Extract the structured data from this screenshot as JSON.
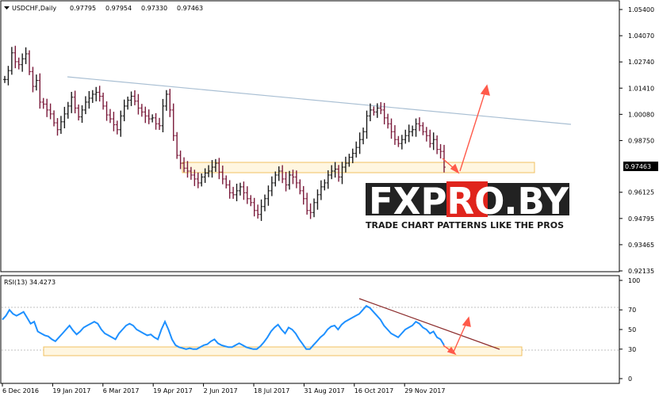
{
  "header": {
    "symbol_label": "USDCHF,Daily",
    "ohlc": [
      "0.97795",
      "0.97954",
      "0.97330",
      "0.97463"
    ]
  },
  "rsi_header": "RSI(13) 34.4273",
  "watermark": {
    "brand": "FXPRO.BY",
    "tagline": "TRADE CHART PATTERNS LIKE THE PROS"
  },
  "colors": {
    "up_bar": "#1a1a1a",
    "down_bar": "#7a1a3a",
    "rsi_line": "#1e90ff",
    "trendline": "#a9bfd3",
    "rsi_trendline": "#8b2b2b",
    "arrow": "#ff5a4a",
    "zone_border": "#f0c060",
    "zone_fill": "#fff6e0",
    "current_price_box": "#000000"
  },
  "chart_data": [
    {
      "type": "candlestick",
      "title": "USDCHF,Daily",
      "y_ticks": [
        "1.05400",
        "1.04070",
        "1.02740",
        "1.01410",
        "1.00080",
        "0.98750",
        "0.97463",
        "0.96125",
        "0.94795",
        "0.93465",
        "0.92135"
      ],
      "ylim": [
        0.92135,
        1.054
      ],
      "current_price": "0.97463",
      "x_ticks": [
        "6 Dec 2016",
        "19 Jan 2017",
        "6 Mar 2017",
        "19 Apr 2017",
        "2 Jun 2017",
        "18 Jul 2017",
        "31 Aug 2017",
        "16 Oct 2017",
        "29 Nov 2017"
      ],
      "series": [
        {
          "values": [
            1.0185,
            1.023,
            1.032,
            1.0275,
            1.026,
            1.029,
            1.0315,
            1.0225,
            1.015,
            1.018,
            1.007,
            1.006,
            1.003,
            1.001,
            0.9965,
            0.993,
            0.997,
            1.001,
            1.005,
            1.0095,
            1.004,
            0.9995,
            1.003,
            1.007,
            1.009,
            1.011,
            1.012,
            1.01,
            1.005,
            1.0005,
            0.9985,
            0.9955,
            0.993,
            1.0,
            1.005,
            1.008,
            1.01,
            1.0075,
            1.004,
            1.002,
            1.0,
            0.9985,
            0.999,
            0.996,
            0.995,
            1.005,
            1.011,
            1.003,
            0.99,
            0.98,
            0.976,
            0.9735,
            0.972,
            0.97,
            0.968,
            0.966,
            0.969,
            0.971,
            0.972,
            0.974,
            0.976,
            0.9715,
            0.968,
            0.965,
            0.961,
            0.96,
            0.962,
            0.964,
            0.961,
            0.958,
            0.956,
            0.952,
            0.95,
            0.954,
            0.958,
            0.962,
            0.966,
            0.97,
            0.972,
            0.968,
            0.965,
            0.97,
            0.969,
            0.966,
            0.962,
            0.958,
            0.952,
            0.951,
            0.956,
            0.96,
            0.964,
            0.966,
            0.97,
            0.972,
            0.973,
            0.969,
            0.974,
            0.976,
            0.979,
            0.981,
            0.984,
            0.988,
            0.992,
            1.0,
            1.003,
            1.002,
            1.004,
            1.003,
            0.999,
            0.996,
            0.992,
            0.988,
            0.986,
            0.988,
            0.99,
            0.992,
            0.993,
            0.996,
            0.995,
            0.992,
            0.99,
            0.986,
            0.988,
            0.983,
            0.982,
            0.974
          ]
        }
      ]
    },
    {
      "type": "line",
      "title": "RSI(13) 34.4273",
      "y_ticks": [
        "100",
        "70",
        "50",
        "30",
        "0"
      ],
      "ylim": [
        0,
        100
      ],
      "series": [
        {
          "name": "RSI(13)",
          "values": [
            60,
            64,
            70,
            66,
            64,
            66,
            68,
            62,
            56,
            58,
            48,
            46,
            44,
            43,
            40,
            38,
            42,
            46,
            50,
            54,
            49,
            45,
            48,
            52,
            54,
            56,
            58,
            56,
            50,
            46,
            44,
            42,
            40,
            46,
            50,
            54,
            56,
            54,
            50,
            48,
            46,
            44,
            45,
            42,
            40,
            50,
            58,
            50,
            40,
            34,
            32,
            31,
            30,
            31,
            30,
            30,
            32,
            34,
            35,
            38,
            40,
            36,
            34,
            33,
            32,
            32,
            34,
            36,
            34,
            32,
            31,
            30,
            30,
            33,
            37,
            42,
            48,
            52,
            55,
            50,
            46,
            52,
            50,
            46,
            40,
            35,
            30,
            30,
            34,
            38,
            42,
            45,
            50,
            53,
            54,
            50,
            55,
            58,
            60,
            62,
            64,
            66,
            70,
            74,
            72,
            68,
            64,
            60,
            54,
            50,
            46,
            44,
            42,
            46,
            50,
            52,
            54,
            58,
            56,
            52,
            50,
            46,
            48,
            42,
            40,
            34
          ]
        }
      ]
    }
  ]
}
